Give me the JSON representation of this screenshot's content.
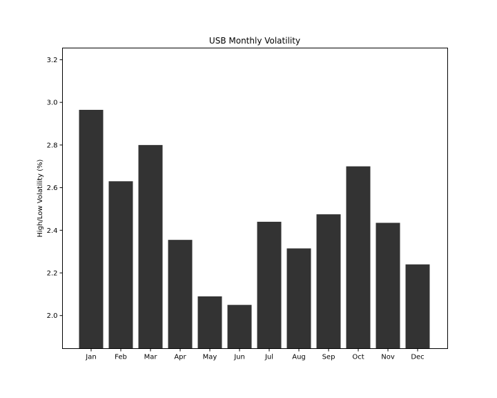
{
  "chart_data": {
    "type": "bar",
    "title": "USB Monthly Volatility",
    "xlabel": "",
    "ylabel": "High/Low Volatility (%)",
    "categories": [
      "Jan",
      "Feb",
      "Mar",
      "Apr",
      "May",
      "Jun",
      "Jul",
      "Aug",
      "Sep",
      "Oct",
      "Nov",
      "Dec"
    ],
    "values": [
      2.965,
      2.63,
      2.8,
      2.355,
      2.09,
      2.05,
      2.44,
      2.315,
      2.475,
      2.7,
      2.435,
      2.24
    ],
    "ylim": [
      1.845,
      3.255
    ],
    "yticks": [
      "2.0",
      "2.2",
      "2.4",
      "2.6",
      "2.8",
      "3.0",
      "3.2"
    ],
    "bar_color": "#333333",
    "grid": false,
    "legend": "none"
  }
}
